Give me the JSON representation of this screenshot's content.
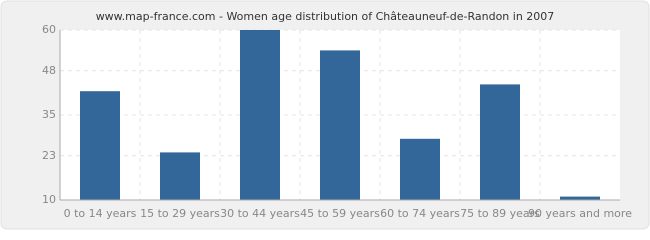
{
  "chart_data": {
    "type": "bar",
    "title": "www.map-france.com - Women age distribution of Châteauneuf-de-Randon in 2007",
    "categories": [
      "0 to 14 years",
      "15 to 29 years",
      "30 to 44 years",
      "45 to 59 years",
      "60 to 74 years",
      "75 to 89 years",
      "90 years and more"
    ],
    "values": [
      42,
      24,
      60,
      54,
      28,
      44,
      11
    ],
    "color": "#336699",
    "ylim": [
      10,
      60
    ],
    "yticks": [
      10,
      23,
      35,
      48,
      60
    ],
    "grid": true
  }
}
